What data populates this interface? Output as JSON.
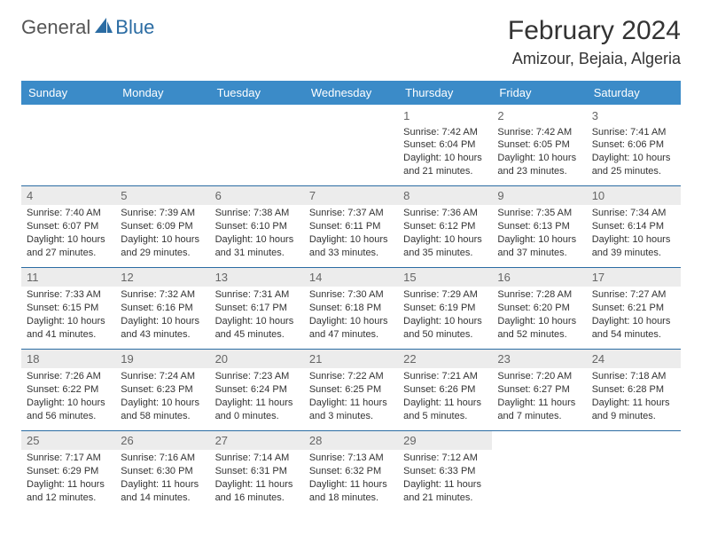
{
  "logo": {
    "text1": "General",
    "text2": "Blue"
  },
  "title": "February 2024",
  "location": "Amizour, Bejaia, Algeria",
  "colors": {
    "header_bg": "#3b8bc8",
    "header_text": "#ffffff",
    "band_bg": "#ececec",
    "rule": "#2b6ca3",
    "logo_blue": "#2b6ca3"
  },
  "day_headers": [
    "Sunday",
    "Monday",
    "Tuesday",
    "Wednesday",
    "Thursday",
    "Friday",
    "Saturday"
  ],
  "weeks": [
    [
      null,
      null,
      null,
      null,
      {
        "n": "1",
        "sr": "7:42 AM",
        "ss": "6:04 PM",
        "dl": "10 hours and 21 minutes."
      },
      {
        "n": "2",
        "sr": "7:42 AM",
        "ss": "6:05 PM",
        "dl": "10 hours and 23 minutes."
      },
      {
        "n": "3",
        "sr": "7:41 AM",
        "ss": "6:06 PM",
        "dl": "10 hours and 25 minutes."
      }
    ],
    [
      {
        "n": "4",
        "sr": "7:40 AM",
        "ss": "6:07 PM",
        "dl": "10 hours and 27 minutes."
      },
      {
        "n": "5",
        "sr": "7:39 AM",
        "ss": "6:09 PM",
        "dl": "10 hours and 29 minutes."
      },
      {
        "n": "6",
        "sr": "7:38 AM",
        "ss": "6:10 PM",
        "dl": "10 hours and 31 minutes."
      },
      {
        "n": "7",
        "sr": "7:37 AM",
        "ss": "6:11 PM",
        "dl": "10 hours and 33 minutes."
      },
      {
        "n": "8",
        "sr": "7:36 AM",
        "ss": "6:12 PM",
        "dl": "10 hours and 35 minutes."
      },
      {
        "n": "9",
        "sr": "7:35 AM",
        "ss": "6:13 PM",
        "dl": "10 hours and 37 minutes."
      },
      {
        "n": "10",
        "sr": "7:34 AM",
        "ss": "6:14 PM",
        "dl": "10 hours and 39 minutes."
      }
    ],
    [
      {
        "n": "11",
        "sr": "7:33 AM",
        "ss": "6:15 PM",
        "dl": "10 hours and 41 minutes."
      },
      {
        "n": "12",
        "sr": "7:32 AM",
        "ss": "6:16 PM",
        "dl": "10 hours and 43 minutes."
      },
      {
        "n": "13",
        "sr": "7:31 AM",
        "ss": "6:17 PM",
        "dl": "10 hours and 45 minutes."
      },
      {
        "n": "14",
        "sr": "7:30 AM",
        "ss": "6:18 PM",
        "dl": "10 hours and 47 minutes."
      },
      {
        "n": "15",
        "sr": "7:29 AM",
        "ss": "6:19 PM",
        "dl": "10 hours and 50 minutes."
      },
      {
        "n": "16",
        "sr": "7:28 AM",
        "ss": "6:20 PM",
        "dl": "10 hours and 52 minutes."
      },
      {
        "n": "17",
        "sr": "7:27 AM",
        "ss": "6:21 PM",
        "dl": "10 hours and 54 minutes."
      }
    ],
    [
      {
        "n": "18",
        "sr": "7:26 AM",
        "ss": "6:22 PM",
        "dl": "10 hours and 56 minutes."
      },
      {
        "n": "19",
        "sr": "7:24 AM",
        "ss": "6:23 PM",
        "dl": "10 hours and 58 minutes."
      },
      {
        "n": "20",
        "sr": "7:23 AM",
        "ss": "6:24 PM",
        "dl": "11 hours and 0 minutes."
      },
      {
        "n": "21",
        "sr": "7:22 AM",
        "ss": "6:25 PM",
        "dl": "11 hours and 3 minutes."
      },
      {
        "n": "22",
        "sr": "7:21 AM",
        "ss": "6:26 PM",
        "dl": "11 hours and 5 minutes."
      },
      {
        "n": "23",
        "sr": "7:20 AM",
        "ss": "6:27 PM",
        "dl": "11 hours and 7 minutes."
      },
      {
        "n": "24",
        "sr": "7:18 AM",
        "ss": "6:28 PM",
        "dl": "11 hours and 9 minutes."
      }
    ],
    [
      {
        "n": "25",
        "sr": "7:17 AM",
        "ss": "6:29 PM",
        "dl": "11 hours and 12 minutes."
      },
      {
        "n": "26",
        "sr": "7:16 AM",
        "ss": "6:30 PM",
        "dl": "11 hours and 14 minutes."
      },
      {
        "n": "27",
        "sr": "7:14 AM",
        "ss": "6:31 PM",
        "dl": "11 hours and 16 minutes."
      },
      {
        "n": "28",
        "sr": "7:13 AM",
        "ss": "6:32 PM",
        "dl": "11 hours and 18 minutes."
      },
      {
        "n": "29",
        "sr": "7:12 AM",
        "ss": "6:33 PM",
        "dl": "11 hours and 21 minutes."
      },
      null,
      null
    ]
  ],
  "labels": {
    "sunrise": "Sunrise:",
    "sunset": "Sunset:",
    "daylight": "Daylight:"
  }
}
